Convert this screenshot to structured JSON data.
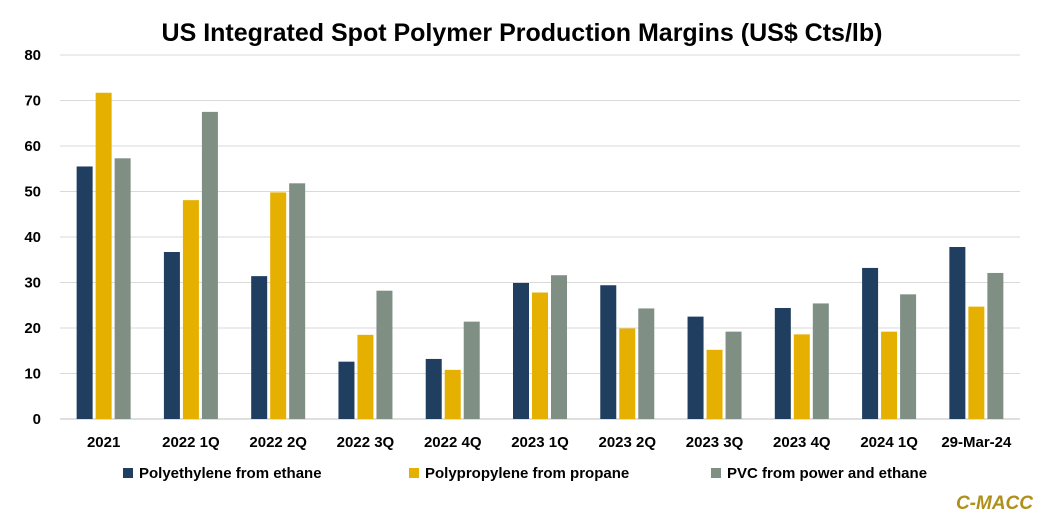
{
  "chart_data": {
    "type": "bar",
    "title": "US Integrated Spot Polymer Production Margins (US$ Cts/lb)",
    "xlabel": "",
    "ylabel": "",
    "ylim": [
      0,
      80
    ],
    "yticks": [
      0,
      10,
      20,
      30,
      40,
      50,
      60,
      70,
      80
    ],
    "grid": true,
    "legend_position": "bottom",
    "categories": [
      "2021",
      "2022 1Q",
      "2022 2Q",
      "2022 3Q",
      "2022 4Q",
      "2023 1Q",
      "2023 2Q",
      "2023 3Q",
      "2023 4Q",
      "2024 1Q",
      "29-Mar-24"
    ],
    "series": [
      {
        "name": "Polyethylene from ethane",
        "color": "#1f3e60",
        "values": [
          55.5,
          36.7,
          31.4,
          12.6,
          13.2,
          29.9,
          29.4,
          22.5,
          24.4,
          33.2,
          37.8
        ]
      },
      {
        "name": "Polypropylene from propane",
        "color": "#e6b000",
        "values": [
          71.7,
          48.1,
          49.8,
          18.5,
          10.8,
          27.8,
          19.9,
          15.2,
          18.6,
          19.2,
          24.7
        ]
      },
      {
        "name": "PVC from power and ethane",
        "color": "#7f8f84",
        "values": [
          57.3,
          67.5,
          51.8,
          28.2,
          21.4,
          31.6,
          24.3,
          19.2,
          25.4,
          27.4,
          32.1
        ]
      }
    ]
  },
  "brand": "C-MACC"
}
